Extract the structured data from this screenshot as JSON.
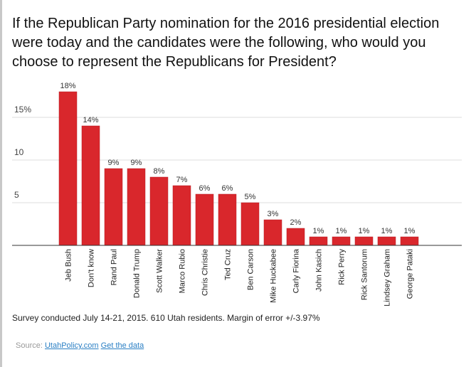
{
  "title": "If the Republican Party nomination for the 2016 presidential election were today and the candidates were the following, who would you choose to represent the Republicans for President?",
  "note": "Survey conducted July 14-21, 2015. 610 Utah residents. Margin of error +/-3.97%",
  "source": {
    "label": "Source:",
    "link1": "UtahPolicy.com",
    "link2": "Get the data"
  },
  "colors": {
    "bar": "#d9272c",
    "grid": "#dddddd",
    "axis": "#333333",
    "link": "#2a7fc4"
  },
  "chart_data": {
    "type": "bar",
    "categories": [
      "Jeb Bush",
      "Don't know",
      "Rand Paul",
      "Donald Trump",
      "Scott Walker",
      "Marco Rubio",
      "Chris Christie",
      "Ted Cruz",
      "Ben Carson",
      "Mike Huckabee",
      "Carly Fiorina",
      "John Kasich",
      "Rick Perry",
      "Rick Santorum",
      "Lindsey Graham",
      "George Pataki"
    ],
    "values": [
      18,
      14,
      9,
      9,
      8,
      7,
      6,
      6,
      5,
      3,
      2,
      1,
      1,
      1,
      1,
      1
    ],
    "data_labels": [
      "18%",
      "14%",
      "9%",
      "9%",
      "8%",
      "7%",
      "6%",
      "6%",
      "5%",
      "3%",
      "2%",
      "1%",
      "1%",
      "1%",
      "1%",
      "1%"
    ],
    "yticks": [
      {
        "value": 5,
        "label": "5"
      },
      {
        "value": 10,
        "label": "10"
      },
      {
        "value": 15,
        "label": "15%"
      }
    ],
    "ylim": [
      0,
      18
    ],
    "grid": true,
    "legend": "none"
  }
}
